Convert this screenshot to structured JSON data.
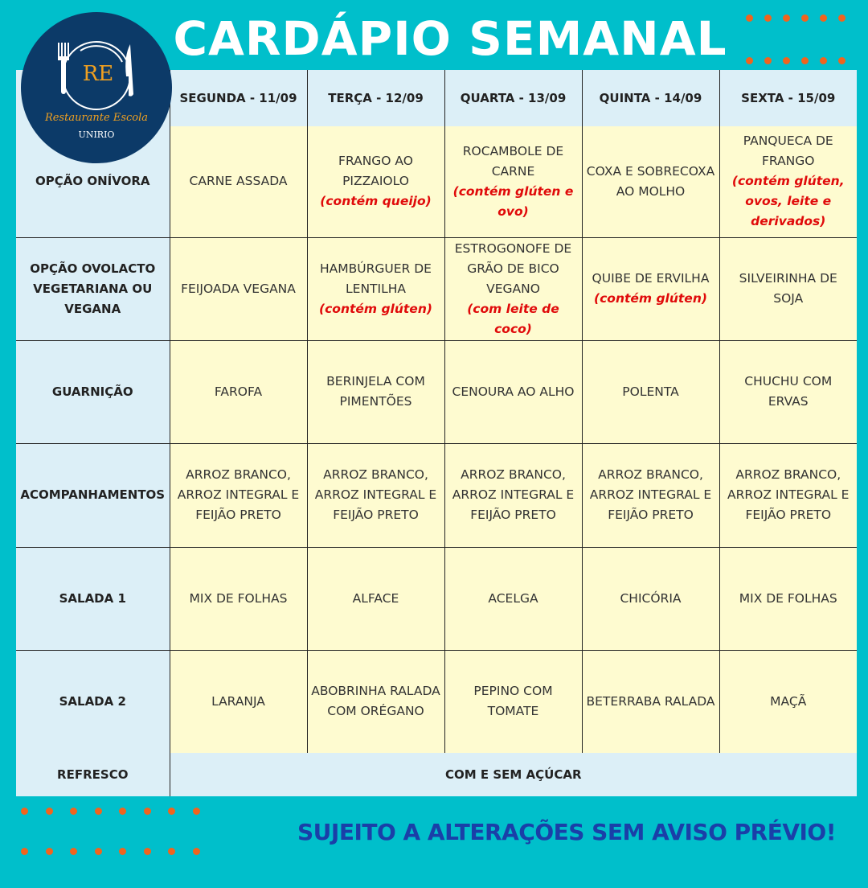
{
  "title": "CARDÁPIO SEMANAL",
  "logo": {
    "initials": "RE",
    "name": "Restaurante Escola",
    "institution": "UNIRIO"
  },
  "colors": {
    "background": "#00bfcb",
    "header": "#dceff7",
    "cell": "#fefbd0",
    "allergen_note": "#e00a0a",
    "accent_dots": "#f0641e",
    "footer": "#1a3fa8"
  },
  "days": [
    "SEGUNDA - 11/09",
    "TERÇA - 12/09",
    "QUARTA - 13/09",
    "QUINTA - 14/09",
    "SEXTA - 15/09"
  ],
  "rows": [
    {
      "label": "OPÇÃO ONÍVORA",
      "cells": [
        {
          "text": "CARNE ASSADA"
        },
        {
          "text": "FRANGO AO PIZZAIOLO",
          "note": "(contém queijo)"
        },
        {
          "text": "ROCAMBOLE DE CARNE",
          "note": "(contém glúten e ovo)"
        },
        {
          "text": "COXA  E SOBRECOXA AO MOLHO"
        },
        {
          "text": "PANQUECA DE FRANGO",
          "note": "(contém glúten, ovos, leite e derivados)"
        }
      ]
    },
    {
      "label": "OPÇÃO OVOLACTO VEGETARIANA OU VEGANA",
      "cells": [
        {
          "text": "FEIJOADA VEGANA"
        },
        {
          "text": "HAMBÚRGUER DE LENTILHA",
          "note": "(contém glúten)"
        },
        {
          "text": "ESTROGONOFE DE GRÃO DE BICO VEGANO",
          "note": "(com leite de coco)"
        },
        {
          "text": "QUIBE DE ERVILHA",
          "note": "(contém glúten)"
        },
        {
          "text": "SILVEIRINHA DE SOJA"
        }
      ]
    },
    {
      "label": "GUARNIÇÃO",
      "cells": [
        {
          "text": "FAROFA"
        },
        {
          "text": "BERINJELA COM PIMENTÕES"
        },
        {
          "text": "CENOURA AO ALHO"
        },
        {
          "text": "POLENTA"
        },
        {
          "text": "CHUCHU COM ERVAS"
        }
      ]
    },
    {
      "label": "ACOMPANHAMENTOS",
      "cells": [
        {
          "text": "ARROZ BRANCO, ARROZ INTEGRAL E FEIJÃO PRETO"
        },
        {
          "text": "ARROZ BRANCO, ARROZ INTEGRAL E FEIJÃO PRETO"
        },
        {
          "text": "ARROZ BRANCO, ARROZ INTEGRAL E FEIJÃO PRETO"
        },
        {
          "text": "ARROZ BRANCO, ARROZ INTEGRAL E FEIJÃO PRETO"
        },
        {
          "text": "ARROZ BRANCO, ARROZ INTEGRAL E FEIJÃO PRETO"
        }
      ]
    },
    {
      "label": "SALADA 1",
      "cells": [
        {
          "text": "MIX DE FOLHAS"
        },
        {
          "text": "ALFACE"
        },
        {
          "text": "ACELGA"
        },
        {
          "text": "CHICÓRIA"
        },
        {
          "text": "MIX DE FOLHAS"
        }
      ]
    },
    {
      "label": "SALADA 2",
      "cells": [
        {
          "text": "LARANJA"
        },
        {
          "text": "ABOBRINHA RALADA COM ORÉGANO"
        },
        {
          "text": "PEPINO COM TOMATE"
        },
        {
          "text": "BETERRABA RALADA"
        },
        {
          "text": "MAÇÃ"
        }
      ]
    }
  ],
  "refresco": {
    "label": "REFRESCO",
    "value": "COM E SEM AÇÚCAR"
  },
  "footer": "SUJEITO A ALTERAÇÕES SEM AVISO PRÉVIO!"
}
